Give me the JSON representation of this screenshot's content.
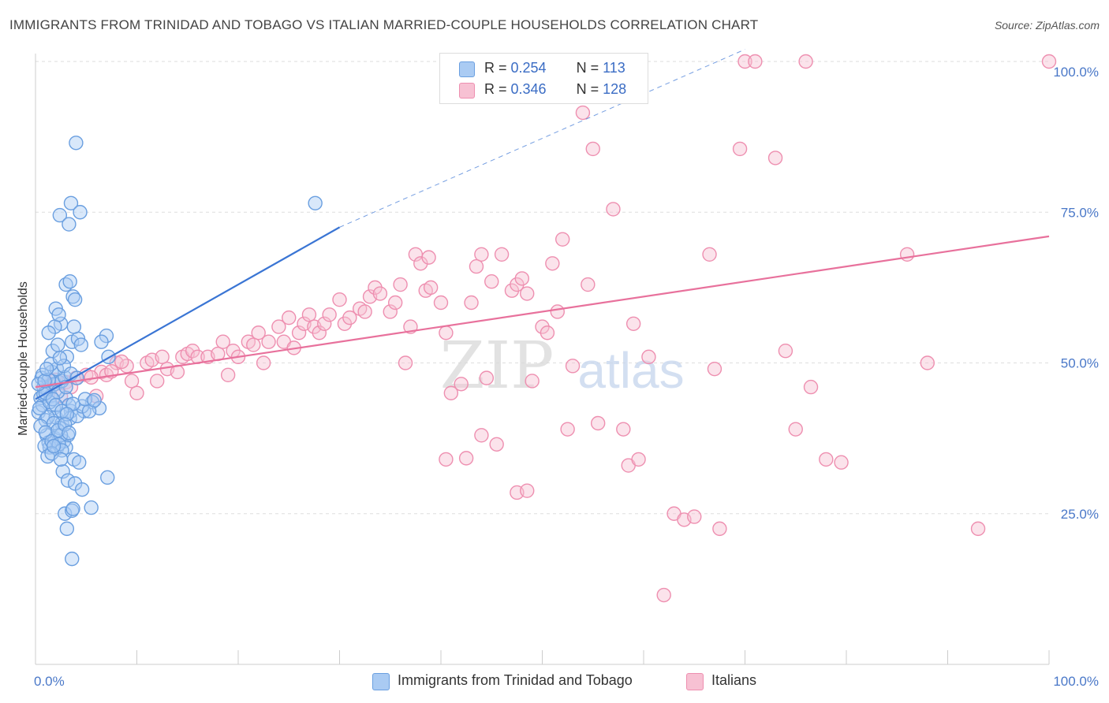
{
  "title": "IMMIGRANTS FROM TRINIDAD AND TOBAGO VS ITALIAN MARRIED-COUPLE HOUSEHOLDS CORRELATION CHART",
  "source": "Source: ZipAtlas.com",
  "watermark": {
    "zip": "ZIP",
    "atlas": "atlas"
  },
  "legend": {
    "rows": [
      {
        "r_label": "R = ",
        "r_value": "0.254",
        "n_label": "N = ",
        "n_value": "113"
      },
      {
        "r_label": "R = ",
        "r_value": "0.346",
        "n_label": "N = ",
        "n_value": "128"
      }
    ]
  },
  "chart_data": {
    "type": "scatter",
    "title": "IMMIGRANTS FROM TRINIDAD AND TOBAGO VS ITALIAN MARRIED-COUPLE HOUSEHOLDS CORRELATION CHART",
    "xlabel": "",
    "ylabel": "Married-couple Households",
    "xlim": [
      0,
      100
    ],
    "ylim": [
      0,
      100
    ],
    "x_tick_labels": [
      "0.0%",
      "100.0%"
    ],
    "y_tick_labels": [
      {
        "value": 25,
        "label": "25.0%"
      },
      {
        "value": 50,
        "label": "50.0%"
      },
      {
        "value": 75,
        "label": "75.0%"
      },
      {
        "value": 100,
        "label": "100.0%"
      }
    ],
    "grid": true,
    "legend_position": "top-center",
    "colors": {
      "blue": "#6a9fe0",
      "blue_fill": "#aacbf3",
      "blue_line": "#3a75d4",
      "pink": "#ee8fb0",
      "pink_fill": "#f7c1d3",
      "pink_line": "#e8719c"
    },
    "series": [
      {
        "name": "Immigrants from Trinidad and Tobago",
        "color": "blue",
        "trend": {
          "x": [
            0,
            30
          ],
          "y": [
            44.0,
            72.5
          ],
          "dashed_to": [
            70,
            102
          ]
        },
        "points": [
          [
            0.3,
            41.8
          ],
          [
            0.5,
            44.2
          ],
          [
            0.7,
            43.0
          ],
          [
            0.8,
            46.0
          ],
          [
            1.0,
            40.5
          ],
          [
            1.2,
            45.5
          ],
          [
            0.6,
            47.5
          ],
          [
            1.5,
            44.5
          ],
          [
            1.8,
            42.5
          ],
          [
            1.1,
            38.0
          ],
          [
            1.3,
            36.8
          ],
          [
            2.0,
            41.0
          ],
          [
            2.3,
            46.8
          ],
          [
            2.6,
            40.0
          ],
          [
            3.0,
            44.2
          ],
          [
            1.6,
            48.5
          ],
          [
            1.9,
            37.5
          ],
          [
            2.1,
            35.8
          ],
          [
            2.4,
            39.2
          ],
          [
            1.4,
            36.0
          ],
          [
            2.8,
            37.0
          ],
          [
            3.2,
            38.0
          ],
          [
            3.5,
            42.0
          ],
          [
            0.9,
            36.2
          ],
          [
            1.7,
            52.0
          ],
          [
            2.2,
            53.0
          ],
          [
            2.5,
            56.5
          ],
          [
            1.9,
            56.0
          ],
          [
            1.3,
            55.0
          ],
          [
            2.0,
            59.0
          ],
          [
            2.3,
            58.0
          ],
          [
            3.6,
            53.5
          ],
          [
            3.1,
            51.0
          ],
          [
            4.2,
            54.0
          ],
          [
            4.5,
            53.0
          ],
          [
            3.8,
            56.0
          ],
          [
            3.0,
            63.0
          ],
          [
            3.4,
            63.5
          ],
          [
            3.7,
            61.0
          ],
          [
            3.9,
            60.5
          ],
          [
            2.4,
            74.5
          ],
          [
            3.3,
            73.0
          ],
          [
            3.5,
            76.5
          ],
          [
            4.4,
            75.0
          ],
          [
            4.0,
            86.5
          ],
          [
            27.6,
            76.5
          ],
          [
            7.0,
            54.5
          ],
          [
            6.5,
            53.5
          ],
          [
            7.2,
            51.0
          ],
          [
            5.6,
            43.5
          ],
          [
            6.3,
            42.5
          ],
          [
            4.8,
            42.0
          ],
          [
            3.3,
            43.0
          ],
          [
            1.2,
            41.0
          ],
          [
            1.8,
            40.0
          ],
          [
            2.5,
            38.0
          ],
          [
            3.0,
            36.0
          ],
          [
            3.8,
            34.0
          ],
          [
            4.3,
            33.5
          ],
          [
            2.7,
            32.0
          ],
          [
            3.2,
            30.5
          ],
          [
            3.9,
            30.0
          ],
          [
            4.6,
            29.0
          ],
          [
            7.1,
            31.0
          ],
          [
            2.9,
            25.0
          ],
          [
            3.6,
            25.5
          ],
          [
            3.7,
            25.8
          ],
          [
            5.5,
            26.0
          ],
          [
            3.1,
            22.5
          ],
          [
            3.6,
            17.5
          ],
          [
            0.4,
            42.5
          ],
          [
            0.8,
            44.8
          ],
          [
            1.4,
            43.5
          ],
          [
            1.9,
            46.5
          ],
          [
            2.2,
            45.2
          ],
          [
            2.6,
            47.0
          ],
          [
            2.9,
            47.6
          ],
          [
            0.5,
            39.5
          ],
          [
            1.0,
            38.5
          ],
          [
            1.6,
            37.0
          ],
          [
            2.3,
            36.5
          ],
          [
            2.6,
            35.5
          ],
          [
            1.2,
            34.5
          ],
          [
            1.6,
            35.0
          ],
          [
            3.4,
            40.8
          ],
          [
            4.1,
            41.2
          ],
          [
            4.6,
            42.8
          ],
          [
            5.3,
            42.0
          ],
          [
            3.7,
            43.2
          ],
          [
            4.9,
            44.0
          ],
          [
            5.8,
            43.8
          ],
          [
            2.1,
            49.0
          ],
          [
            2.8,
            49.5
          ],
          [
            3.5,
            48.2
          ],
          [
            4.1,
            47.5
          ],
          [
            1.0,
            45.0
          ],
          [
            0.7,
            48.0
          ],
          [
            1.5,
            49.8
          ],
          [
            2.4,
            50.8
          ],
          [
            3.0,
            46.0
          ],
          [
            1.7,
            44.0
          ],
          [
            2.0,
            43.0
          ],
          [
            2.6,
            42.0
          ],
          [
            3.1,
            41.5
          ],
          [
            1.3,
            47.2
          ],
          [
            0.3,
            46.5
          ],
          [
            0.9,
            47.0
          ],
          [
            1.1,
            49.0
          ],
          [
            2.2,
            38.8
          ],
          [
            2.9,
            39.8
          ],
          [
            3.3,
            38.4
          ],
          [
            1.8,
            36.2
          ],
          [
            2.5,
            34.0
          ]
        ]
      },
      {
        "name": "Italians",
        "color": "pink",
        "trend": {
          "x": [
            0,
            100
          ],
          "y": [
            46.0,
            71.0
          ]
        },
        "points": [
          [
            1.5,
            46.5
          ],
          [
            2.5,
            44.5
          ],
          [
            3.0,
            46.8
          ],
          [
            4.0,
            47.5
          ],
          [
            5.0,
            48.0
          ],
          [
            6.0,
            44.5
          ],
          [
            6.5,
            48.5
          ],
          [
            7.0,
            48.0
          ],
          [
            8.0,
            50.0
          ],
          [
            9.0,
            49.5
          ],
          [
            9.5,
            47.0
          ],
          [
            10.0,
            45.0
          ],
          [
            11.0,
            50.0
          ],
          [
            11.5,
            50.5
          ],
          [
            12.0,
            47.0
          ],
          [
            12.5,
            51.0
          ],
          [
            13.0,
            49.0
          ],
          [
            14.0,
            48.5
          ],
          [
            14.5,
            51.0
          ],
          [
            15.0,
            51.5
          ],
          [
            15.5,
            52.0
          ],
          [
            16.0,
            51.0
          ],
          [
            17.0,
            51.0
          ],
          [
            18.0,
            51.5
          ],
          [
            18.5,
            53.5
          ],
          [
            19.0,
            48.0
          ],
          [
            19.5,
            52.0
          ],
          [
            20.0,
            51.0
          ],
          [
            21.0,
            53.5
          ],
          [
            21.5,
            53.0
          ],
          [
            22.0,
            55.0
          ],
          [
            22.5,
            50.0
          ],
          [
            23.0,
            53.5
          ],
          [
            24.0,
            56.0
          ],
          [
            24.5,
            53.5
          ],
          [
            25.0,
            57.5
          ],
          [
            25.5,
            52.5
          ],
          [
            26.0,
            55.0
          ],
          [
            26.5,
            56.5
          ],
          [
            27.0,
            58.0
          ],
          [
            27.5,
            56.0
          ],
          [
            28.0,
            55.0
          ],
          [
            28.5,
            56.5
          ],
          [
            29.0,
            58.0
          ],
          [
            30.0,
            60.5
          ],
          [
            30.5,
            56.5
          ],
          [
            31.0,
            57.5
          ],
          [
            32.0,
            59.0
          ],
          [
            32.5,
            58.5
          ],
          [
            33.0,
            61.0
          ],
          [
            33.5,
            62.5
          ],
          [
            34.0,
            61.5
          ],
          [
            35.0,
            58.5
          ],
          [
            35.5,
            60.0
          ],
          [
            36.0,
            63.0
          ],
          [
            36.5,
            50.0
          ],
          [
            37.0,
            56.0
          ],
          [
            37.5,
            68.0
          ],
          [
            38.0,
            66.5
          ],
          [
            38.5,
            62.0
          ],
          [
            38.8,
            67.5
          ],
          [
            39.0,
            62.5
          ],
          [
            40.0,
            60.0
          ],
          [
            40.5,
            55.0
          ],
          [
            41.0,
            45.0
          ],
          [
            42.0,
            46.5
          ],
          [
            43.0,
            60.0
          ],
          [
            43.5,
            66.0
          ],
          [
            44.0,
            68.0
          ],
          [
            44.5,
            47.5
          ],
          [
            45.0,
            63.5
          ],
          [
            46.0,
            68.0
          ],
          [
            47.0,
            62.0
          ],
          [
            47.5,
            63.0
          ],
          [
            48.0,
            64.0
          ],
          [
            48.5,
            61.5
          ],
          [
            49.0,
            47.0
          ],
          [
            50.0,
            56.0
          ],
          [
            50.5,
            55.0
          ],
          [
            51.0,
            66.5
          ],
          [
            51.5,
            58.5
          ],
          [
            52.0,
            70.5
          ],
          [
            53.0,
            49.5
          ],
          [
            54.0,
            91.5
          ],
          [
            54.5,
            63.0
          ],
          [
            55.0,
            85.5
          ],
          [
            56.0,
            100.0
          ],
          [
            57.0,
            75.5
          ],
          [
            58.0,
            39.0
          ],
          [
            58.5,
            33.0
          ],
          [
            59.0,
            56.5
          ],
          [
            59.5,
            34.0
          ],
          [
            60.5,
            51.0
          ],
          [
            62.0,
            11.5
          ],
          [
            63.0,
            25.0
          ],
          [
            64.0,
            24.0
          ],
          [
            65.0,
            24.5
          ],
          [
            66.5,
            68.0
          ],
          [
            67.0,
            49.0
          ],
          [
            67.5,
            22.5
          ],
          [
            69.5,
            85.5
          ],
          [
            70.0,
            100.0
          ],
          [
            71.0,
            100.0
          ],
          [
            73.0,
            84.0
          ],
          [
            74.0,
            52.0
          ],
          [
            75.0,
            39.0
          ],
          [
            76.0,
            100.0
          ],
          [
            76.5,
            46.0
          ],
          [
            78.0,
            34.0
          ],
          [
            79.5,
            33.5
          ],
          [
            86.0,
            68.0
          ],
          [
            88.0,
            50.0
          ],
          [
            93.0,
            22.5
          ],
          [
            100.0,
            100.0
          ],
          [
            40.5,
            34.0
          ],
          [
            42.5,
            34.2
          ],
          [
            44.0,
            38.0
          ],
          [
            45.5,
            36.5
          ],
          [
            47.5,
            28.5
          ],
          [
            48.5,
            28.8
          ],
          [
            52.5,
            39.0
          ],
          [
            55.5,
            40.0
          ],
          [
            1.0,
            45.8
          ],
          [
            2.0,
            47.2
          ],
          [
            3.5,
            46.0
          ],
          [
            5.5,
            47.6
          ],
          [
            7.5,
            48.6
          ],
          [
            8.5,
            50.2
          ]
        ]
      }
    ]
  },
  "bottom_legend": [
    {
      "label": "Immigrants from Trinidad and Tobago"
    },
    {
      "label": "Italians"
    }
  ]
}
